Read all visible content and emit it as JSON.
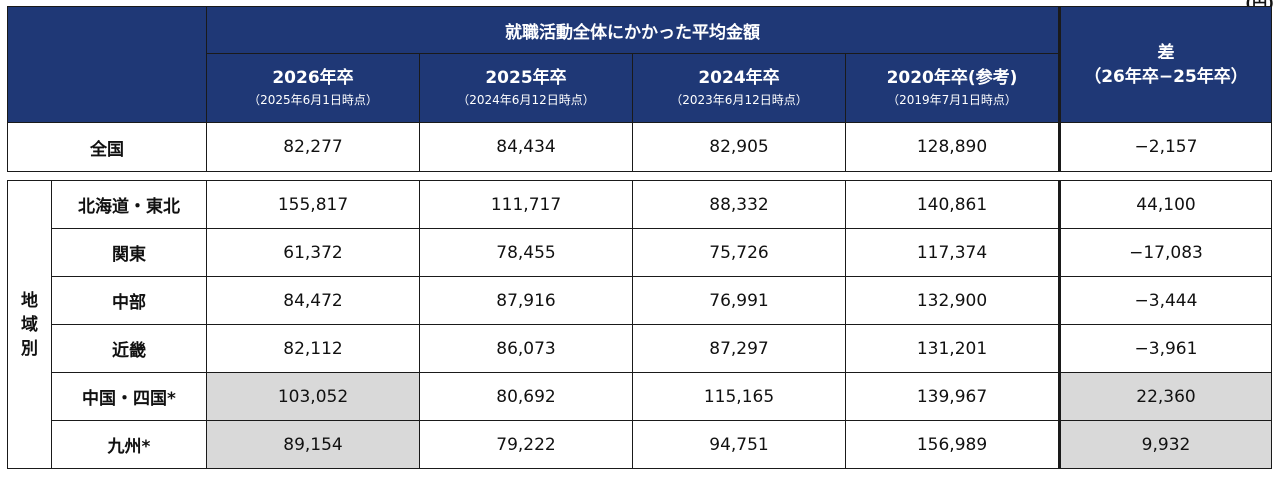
{
  "unit": "(円)",
  "header": {
    "group_title": "就職活動全体にかかった平均金額",
    "columns": [
      {
        "year": "2026年卒",
        "date": "（2025年6月1日時点）"
      },
      {
        "year": "2025年卒",
        "date": "（2024年6月12日時点）"
      },
      {
        "year": "2024年卒",
        "date": "（2023年6月12日時点）"
      },
      {
        "year": "2020年卒(参考)",
        "date": "（2019年7月1日時点）"
      }
    ],
    "diff_title": "差",
    "diff_sub": "（26年卒−25年卒）"
  },
  "national": {
    "label": "全国",
    "values": [
      "82,277",
      "84,434",
      "82,905",
      "128,890"
    ],
    "diff": "−2,157"
  },
  "region_group_label": "地域別",
  "regions": [
    {
      "label": "北海道・東北",
      "values": [
        "155,817",
        "111,717",
        "88,332",
        "140,861"
      ],
      "diff": "44,100"
    },
    {
      "label": "関東",
      "values": [
        "61,372",
        "78,455",
        "75,726",
        "117,374"
      ],
      "diff": "−17,083"
    },
    {
      "label": "中部",
      "values": [
        "84,472",
        "87,916",
        "76,991",
        "132,900"
      ],
      "diff": "−3,444"
    },
    {
      "label": "近畿",
      "values": [
        "82,112",
        "86,073",
        "87,297",
        "131,201"
      ],
      "diff": "−3,961"
    },
    {
      "label": "中国・四国*",
      "values": [
        "103,052",
        "80,692",
        "115,165",
        "139,967"
      ],
      "diff": "22,360"
    },
    {
      "label": "九州*",
      "values": [
        "89,154",
        "79,222",
        "94,751",
        "156,989"
      ],
      "diff": "9,932"
    }
  ],
  "colors": {
    "header_bg": "#1f3876",
    "shaded_bg": "#d9d9d9"
  }
}
